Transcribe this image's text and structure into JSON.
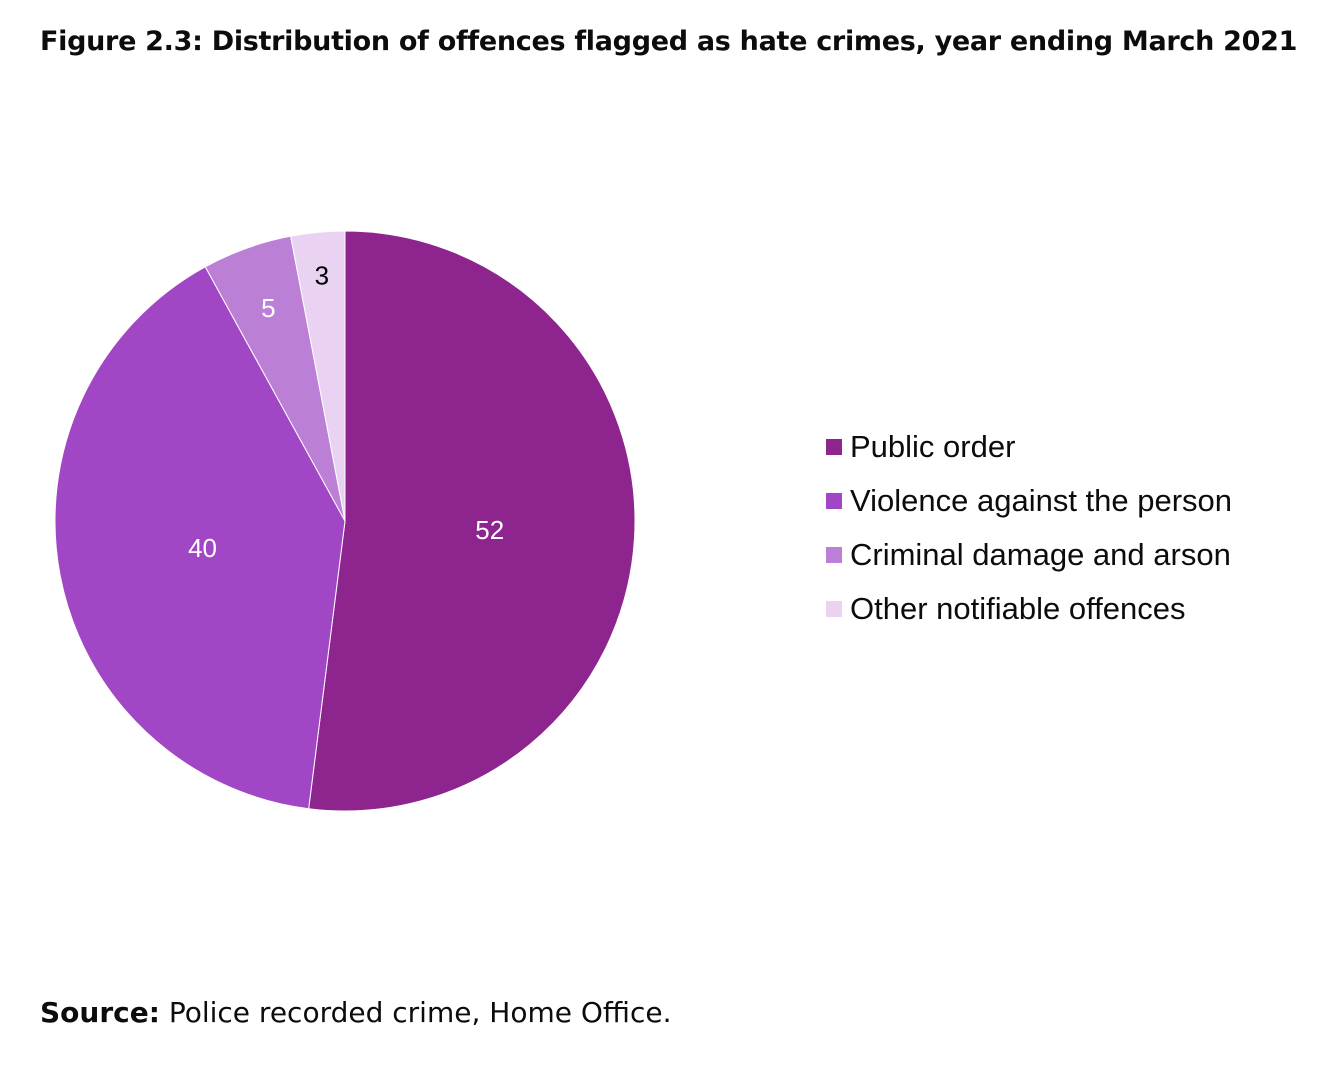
{
  "title": "Figure 2.3: Distribution of offences flagged as hate crimes, year ending March 2021",
  "source": {
    "label": "Source:",
    "text": " Police recorded crime, Home Office."
  },
  "chart_data": {
    "type": "pie",
    "categories": [
      "Public order",
      "Violence against the person",
      "Criminal damage and arson",
      "Other notifiable offences"
    ],
    "values": [
      52,
      40,
      5,
      3
    ],
    "colors": [
      "#8e258e",
      "#a146c4",
      "#bb7fd6",
      "#ead3f2"
    ],
    "label_colors": [
      "#ffffff",
      "#ffffff",
      "#ffffff",
      "#000000"
    ],
    "legend_position": "right",
    "start_angle": "12 o'clock",
    "direction": "clockwise"
  }
}
